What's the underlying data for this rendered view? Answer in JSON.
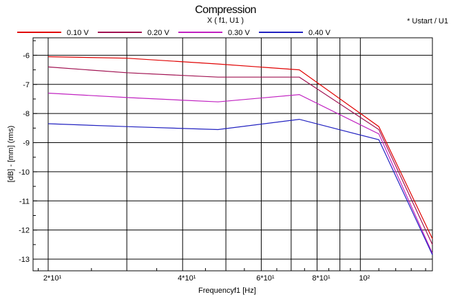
{
  "chart_data": {
    "type": "line",
    "title": "Compression",
    "subtitle": "X ( f1, U1 )",
    "note": "* Ustart / U1",
    "xlabel": "Frequencyf1 [Hz]",
    "ylabel": "[dB] - [mm]  (rms)",
    "x_scale": "log",
    "xlim": [
      18.5,
      145
    ],
    "ylim": [
      -13.4,
      -5.4
    ],
    "x_ticks": [
      {
        "value": 20,
        "label": "2*10¹"
      },
      {
        "value": 40,
        "label": "4*10¹"
      },
      {
        "value": 60,
        "label": "6*10¹"
      },
      {
        "value": 80,
        "label": "8*10¹"
      },
      {
        "value": 100,
        "label": "10²"
      }
    ],
    "y_ticks": [
      -6,
      -7,
      -8,
      -9,
      -10,
      -11,
      -12,
      -13
    ],
    "y_tick_labels": [
      "-6",
      "-7",
      "-8",
      "-9",
      "-10",
      "-11",
      "-12",
      "-13"
    ],
    "grid": true,
    "legend_position": "top-left",
    "series": [
      {
        "name": "0.10 V",
        "color": "#e00000",
        "x": [
          20,
          30,
          48,
          73,
          110,
          145
        ],
        "y": [
          -6.05,
          -6.1,
          -6.3,
          -6.5,
          -8.45,
          -12.3
        ]
      },
      {
        "name": "0.20 V",
        "color": "#a01050",
        "x": [
          20,
          30,
          48,
          73,
          110,
          145
        ],
        "y": [
          -6.4,
          -6.6,
          -6.75,
          -6.75,
          -8.55,
          -12.5
        ]
      },
      {
        "name": "0.30 V",
        "color": "#c020c0",
        "x": [
          20,
          30,
          48,
          73,
          110,
          145
        ],
        "y": [
          -7.3,
          -7.45,
          -7.6,
          -7.35,
          -8.7,
          -12.8
        ]
      },
      {
        "name": "0.40 V",
        "color": "#2020c0",
        "x": [
          20,
          30,
          48,
          73,
          110,
          145
        ],
        "y": [
          -8.35,
          -8.45,
          -8.55,
          -8.2,
          -8.9,
          -12.85
        ]
      }
    ]
  }
}
